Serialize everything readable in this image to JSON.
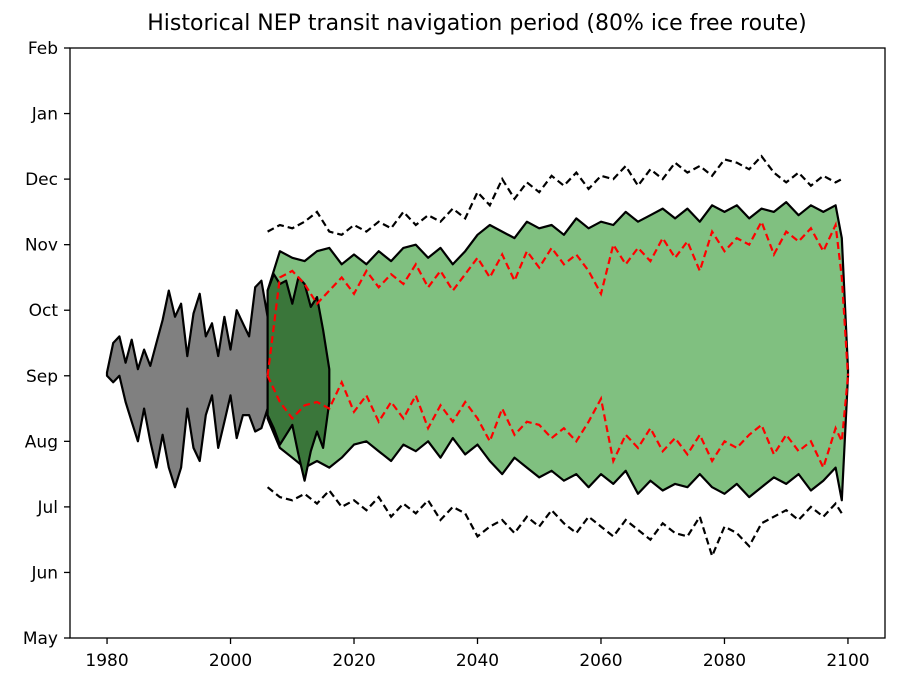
{
  "chart_data": {
    "type": "area",
    "title": "Historical NEP transit navigation period (80% ice free route)",
    "xlabel": "",
    "ylabel": "",
    "xlim": [
      1974,
      2106
    ],
    "ylim": [
      0,
      9
    ],
    "x_ticks": [
      1980,
      2000,
      2020,
      2040,
      2060,
      2080,
      2100
    ],
    "y_ticks": [
      {
        "value": 0,
        "label": "May"
      },
      {
        "value": 1,
        "label": "Jun"
      },
      {
        "value": 2,
        "label": "Jul"
      },
      {
        "value": 3,
        "label": "Aug"
      },
      {
        "value": 4,
        "label": "Sep"
      },
      {
        "value": 5,
        "label": "Oct"
      },
      {
        "value": 6,
        "label": "Nov"
      },
      {
        "value": 7,
        "label": "Dec"
      },
      {
        "value": 8,
        "label": "Jan"
      },
      {
        "value": 9,
        "label": "Feb"
      }
    ],
    "grid": false,
    "legend": "none",
    "series": [
      {
        "kind": "observed-range",
        "color": "#808080",
        "x": [
          1980,
          1981,
          1982,
          1983,
          1984,
          1985,
          1986,
          1987,
          1988,
          1989,
          1990,
          1991,
          1992,
          1993,
          1994,
          1995,
          1996,
          1997,
          1998,
          1999,
          2000,
          2001,
          2002,
          2003,
          2004,
          2005,
          2006
        ],
        "upper": [
          4.05,
          4.5,
          4.6,
          4.2,
          4.55,
          4.1,
          4.4,
          4.15,
          4.5,
          4.85,
          5.3,
          4.9,
          5.1,
          4.3,
          4.95,
          5.25,
          4.6,
          4.8,
          4.3,
          4.9,
          4.4,
          5.0,
          4.8,
          4.6,
          5.35,
          5.45,
          4.9
        ],
        "lower": [
          4.0,
          3.9,
          4.0,
          3.6,
          3.3,
          3.0,
          3.5,
          3.0,
          2.6,
          3.1,
          2.6,
          2.3,
          2.6,
          3.5,
          2.9,
          2.7,
          3.4,
          3.7,
          2.9,
          3.3,
          3.7,
          3.05,
          3.4,
          3.4,
          3.15,
          3.2,
          3.5
        ]
      },
      {
        "kind": "observed-overlap",
        "color": "#3a763a",
        "x": [
          2006,
          2007,
          2008,
          2009,
          2010,
          2011,
          2012,
          2013,
          2014,
          2015,
          2016
        ],
        "upper": [
          5.3,
          5.55,
          5.4,
          5.45,
          5.1,
          5.5,
          5.4,
          5.05,
          5.2,
          4.7,
          4.1
        ],
        "lower": [
          3.4,
          3.2,
          2.95,
          3.1,
          3.25,
          2.8,
          2.4,
          2.85,
          3.15,
          2.9,
          3.6
        ]
      },
      {
        "kind": "projected-range",
        "color": "#80c080",
        "x": [
          2006,
          2008,
          2010,
          2012,
          2014,
          2016,
          2018,
          2020,
          2022,
          2024,
          2026,
          2028,
          2030,
          2032,
          2034,
          2036,
          2038,
          2040,
          2042,
          2044,
          2046,
          2048,
          2050,
          2052,
          2054,
          2056,
          2058,
          2060,
          2062,
          2064,
          2066,
          2068,
          2070,
          2072,
          2074,
          2076,
          2078,
          2080,
          2082,
          2084,
          2086,
          2088,
          2090,
          2092,
          2094,
          2096,
          2098,
          2099,
          2100
        ],
        "upper": [
          5.3,
          5.9,
          5.8,
          5.75,
          5.9,
          5.95,
          5.7,
          5.85,
          5.7,
          5.9,
          5.75,
          5.95,
          6.0,
          5.8,
          5.95,
          5.7,
          5.9,
          6.15,
          6.3,
          6.2,
          6.1,
          6.35,
          6.25,
          6.3,
          6.15,
          6.4,
          6.25,
          6.35,
          6.3,
          6.5,
          6.35,
          6.45,
          6.55,
          6.4,
          6.55,
          6.35,
          6.6,
          6.5,
          6.6,
          6.4,
          6.55,
          6.5,
          6.65,
          6.45,
          6.6,
          6.5,
          6.6,
          6.1,
          4.1
        ],
        "lower": [
          3.35,
          2.9,
          2.75,
          2.6,
          2.7,
          2.6,
          2.75,
          2.95,
          3.0,
          2.85,
          2.7,
          2.95,
          2.85,
          3.0,
          2.75,
          3.05,
          2.8,
          2.95,
          2.7,
          2.5,
          2.75,
          2.6,
          2.45,
          2.55,
          2.4,
          2.5,
          2.3,
          2.5,
          2.35,
          2.55,
          2.2,
          2.4,
          2.25,
          2.35,
          2.3,
          2.5,
          2.3,
          2.2,
          2.35,
          2.15,
          2.3,
          2.45,
          2.35,
          2.5,
          2.25,
          2.4,
          2.6,
          2.1,
          4.0
        ]
      },
      {
        "kind": "projected-mean-bounds",
        "color": "#ff0000",
        "style": "dashed",
        "x": [
          2006,
          2008,
          2010,
          2012,
          2014,
          2016,
          2018,
          2020,
          2022,
          2024,
          2026,
          2028,
          2030,
          2032,
          2034,
          2036,
          2038,
          2040,
          2042,
          2044,
          2046,
          2048,
          2050,
          2052,
          2054,
          2056,
          2058,
          2060,
          2062,
          2064,
          2066,
          2068,
          2070,
          2072,
          2074,
          2076,
          2078,
          2080,
          2082,
          2084,
          2086,
          2088,
          2090,
          2092,
          2094,
          2096,
          2098,
          2099,
          2100
        ],
        "upper": [
          4.0,
          5.5,
          5.6,
          5.4,
          5.1,
          5.3,
          5.5,
          5.25,
          5.6,
          5.35,
          5.55,
          5.4,
          5.7,
          5.35,
          5.6,
          5.3,
          5.55,
          5.8,
          5.5,
          5.85,
          5.45,
          5.9,
          5.65,
          5.95,
          5.7,
          5.85,
          5.6,
          5.25,
          6.0,
          5.7,
          5.95,
          5.75,
          6.1,
          5.8,
          6.05,
          5.6,
          6.2,
          5.9,
          6.1,
          6.0,
          6.35,
          5.85,
          6.2,
          6.05,
          6.25,
          5.9,
          6.3,
          5.5,
          4.0
        ],
        "lower": [
          4.0,
          3.6,
          3.35,
          3.55,
          3.6,
          3.5,
          3.9,
          3.45,
          3.7,
          3.3,
          3.6,
          3.35,
          3.7,
          3.2,
          3.55,
          3.3,
          3.6,
          3.35,
          3.0,
          3.5,
          3.1,
          3.3,
          3.25,
          3.05,
          3.2,
          3.0,
          3.3,
          3.65,
          2.7,
          3.1,
          2.9,
          3.2,
          2.85,
          3.05,
          2.8,
          3.1,
          2.7,
          3.0,
          2.9,
          3.1,
          3.25,
          2.8,
          3.1,
          2.85,
          3.0,
          2.6,
          3.2,
          3.0,
          4.0
        ]
      },
      {
        "kind": "projected-extremes",
        "color": "#000000",
        "style": "dashed",
        "x": [
          2006,
          2008,
          2010,
          2012,
          2014,
          2016,
          2018,
          2020,
          2022,
          2024,
          2026,
          2028,
          2030,
          2032,
          2034,
          2036,
          2038,
          2040,
          2042,
          2044,
          2046,
          2048,
          2050,
          2052,
          2054,
          2056,
          2058,
          2060,
          2062,
          2064,
          2066,
          2068,
          2070,
          2072,
          2074,
          2076,
          2078,
          2080,
          2082,
          2084,
          2086,
          2088,
          2090,
          2092,
          2094,
          2096,
          2098,
          2099
        ],
        "upper": [
          6.2,
          6.3,
          6.25,
          6.35,
          6.5,
          6.2,
          6.15,
          6.3,
          6.2,
          6.35,
          6.25,
          6.5,
          6.3,
          6.45,
          6.35,
          6.55,
          6.4,
          6.8,
          6.6,
          7.0,
          6.7,
          6.95,
          6.8,
          7.05,
          6.9,
          7.1,
          6.85,
          7.05,
          7.0,
          7.2,
          6.9,
          7.15,
          7.0,
          7.25,
          7.1,
          7.2,
          7.05,
          7.3,
          7.25,
          7.15,
          7.35,
          7.1,
          6.95,
          7.1,
          6.9,
          7.05,
          6.95,
          7.0
        ],
        "lower": [
          2.3,
          2.15,
          2.1,
          2.2,
          2.05,
          2.25,
          2.0,
          2.1,
          1.95,
          2.15,
          1.85,
          2.05,
          1.9,
          2.1,
          1.8,
          2.0,
          1.9,
          1.55,
          1.7,
          1.8,
          1.6,
          1.85,
          1.7,
          1.95,
          1.75,
          1.6,
          1.85,
          1.7,
          1.55,
          1.8,
          1.65,
          1.5,
          1.75,
          1.6,
          1.55,
          1.85,
          1.25,
          1.7,
          1.6,
          1.4,
          1.75,
          1.85,
          1.95,
          1.8,
          2.0,
          1.85,
          2.05,
          1.9
        ]
      }
    ]
  }
}
